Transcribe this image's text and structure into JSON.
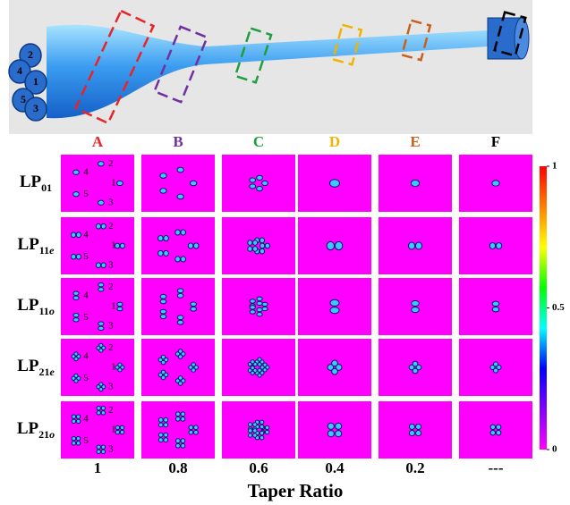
{
  "figure": {
    "fiber_core_labels": [
      "1",
      "2",
      "3",
      "4",
      "5"
    ],
    "columns": [
      {
        "label": "A",
        "color": "#e8232a"
      },
      {
        "label": "B",
        "color": "#7030a0"
      },
      {
        "label": "C",
        "color": "#1e9e3e"
      },
      {
        "label": "D",
        "color": "#f0b400"
      },
      {
        "label": "E",
        "color": "#c8601c"
      },
      {
        "label": "F",
        "color": "#000000"
      }
    ],
    "rows": [
      {
        "base": "LP",
        "subscript": "01"
      },
      {
        "base": "LP",
        "subscript": "11",
        "mode": "e"
      },
      {
        "base": "LP",
        "subscript": "11",
        "mode": "o"
      },
      {
        "base": "LP",
        "subscript": "21",
        "mode": "e"
      },
      {
        "base": "LP",
        "subscript": "21",
        "mode": "o"
      }
    ],
    "taper_ratios": [
      "1",
      "0.8",
      "0.6",
      "0.4",
      "0.2",
      "---"
    ],
    "x_label": "Taper Ratio",
    "colorbar": {
      "lim": [
        0,
        1
      ],
      "ticks": [
        1,
        0.5,
        0
      ],
      "colors": [
        "#ff00ff",
        "#8000ff",
        "#0000ff",
        "#00ffff",
        "#00ff00",
        "#ffff00",
        "#ff8000",
        "#ff0000"
      ]
    }
  }
}
